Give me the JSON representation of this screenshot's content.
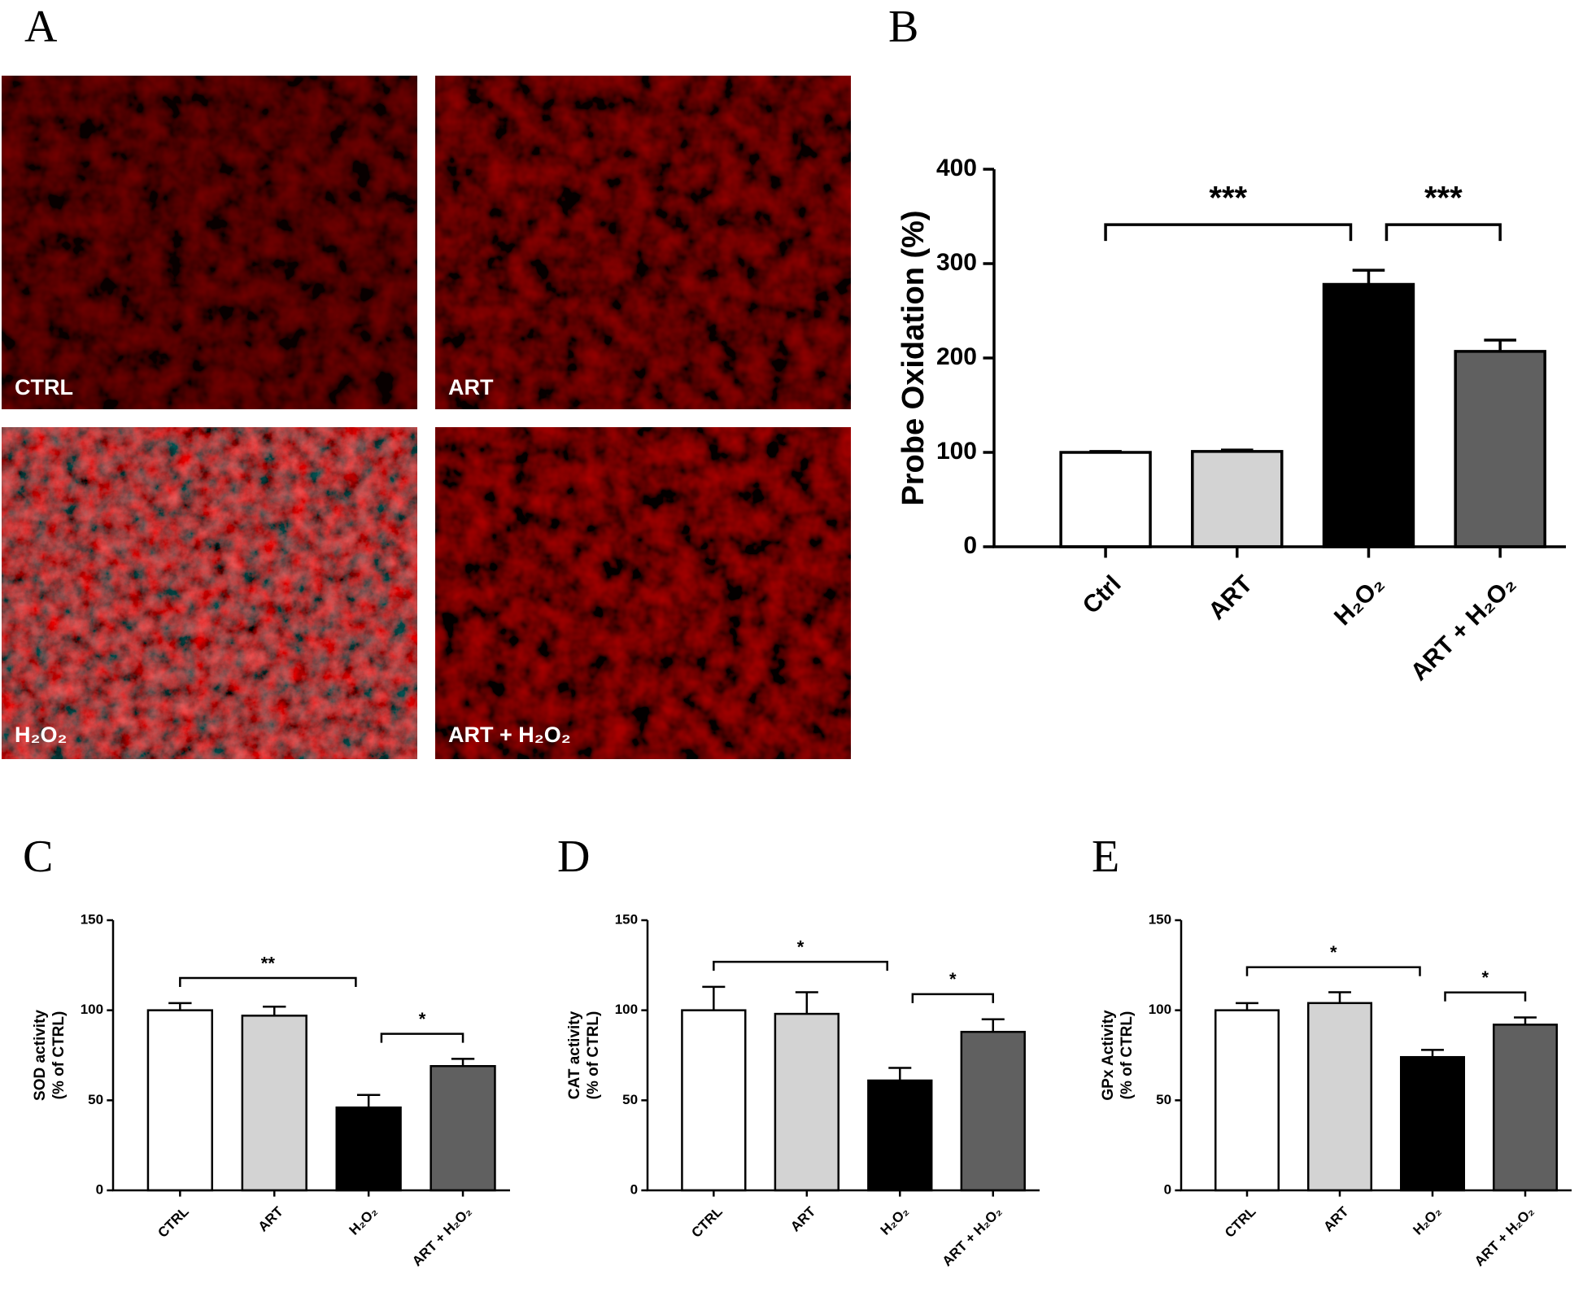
{
  "panel_labels": [
    "A",
    "B",
    "C",
    "D",
    "E"
  ],
  "micrographs": [
    "CTRL",
    "ART",
    "H₂O₂",
    "ART + H₂O₂"
  ],
  "chart_data": [
    {
      "type": "bar",
      "ylabel": "Probe Oxidation (%)",
      "categories": [
        "Ctrl",
        "ART",
        "H₂O₂",
        "ART + H₂O₂"
      ],
      "values": [
        100,
        101,
        278,
        207
      ],
      "errors": [
        1,
        1.5,
        15,
        12
      ],
      "colors": [
        "#ffffff",
        "#d3d3d3",
        "#000000",
        "#606060"
      ],
      "ylim": [
        0,
        400
      ],
      "yticks": [
        0,
        100,
        200,
        300,
        400
      ],
      "brackets": [
        {
          "label": "***",
          "between": [
            0,
            2
          ]
        },
        {
          "label": "***",
          "between": [
            2,
            3
          ]
        }
      ]
    },
    {
      "type": "bar",
      "ylabel": [
        "SOD activity",
        "(% of  CTRL)"
      ],
      "categories": [
        "CTRL",
        "ART",
        "H₂O₂",
        "ART + H₂O₂"
      ],
      "values": [
        100,
        97,
        46,
        69
      ],
      "errors": [
        4,
        5,
        7,
        4
      ],
      "colors": [
        "#ffffff",
        "#d3d3d3",
        "#000000",
        "#606060"
      ],
      "ylim": [
        0,
        150
      ],
      "yticks": [
        0,
        50,
        100,
        150
      ],
      "brackets": [
        {
          "label": "**",
          "between": [
            0,
            2
          ]
        },
        {
          "label": "*",
          "between": [
            2,
            3
          ]
        }
      ]
    },
    {
      "type": "bar",
      "ylabel": [
        "CAT activity",
        "(% of CTRL)"
      ],
      "categories": [
        "CTRL",
        "ART",
        "H₂O₂",
        "ART + H₂O₂"
      ],
      "values": [
        100,
        98,
        61,
        88
      ],
      "errors": [
        13,
        12,
        7,
        7
      ],
      "colors": [
        "#ffffff",
        "#d3d3d3",
        "#000000",
        "#606060"
      ],
      "ylim": [
        0,
        150
      ],
      "yticks": [
        0,
        50,
        100,
        150
      ],
      "brackets": [
        {
          "label": "*",
          "between": [
            0,
            2
          ]
        },
        {
          "label": "*",
          "between": [
            2,
            3
          ]
        }
      ]
    },
    {
      "type": "bar",
      "ylabel": [
        "GPx Activity",
        "(% of CTRL)"
      ],
      "categories": [
        "CTRL",
        "ART",
        "H₂O₂",
        "ART + H₂O₂"
      ],
      "values": [
        100,
        104,
        74,
        92
      ],
      "errors": [
        4,
        6,
        4,
        4
      ],
      "colors": [
        "#ffffff",
        "#d3d3d3",
        "#000000",
        "#606060"
      ],
      "ylim": [
        0,
        150
      ],
      "yticks": [
        0,
        50,
        100,
        150
      ],
      "brackets": [
        {
          "label": "*",
          "between": [
            0,
            2
          ]
        },
        {
          "label": "*",
          "between": [
            2,
            3
          ]
        }
      ]
    }
  ]
}
